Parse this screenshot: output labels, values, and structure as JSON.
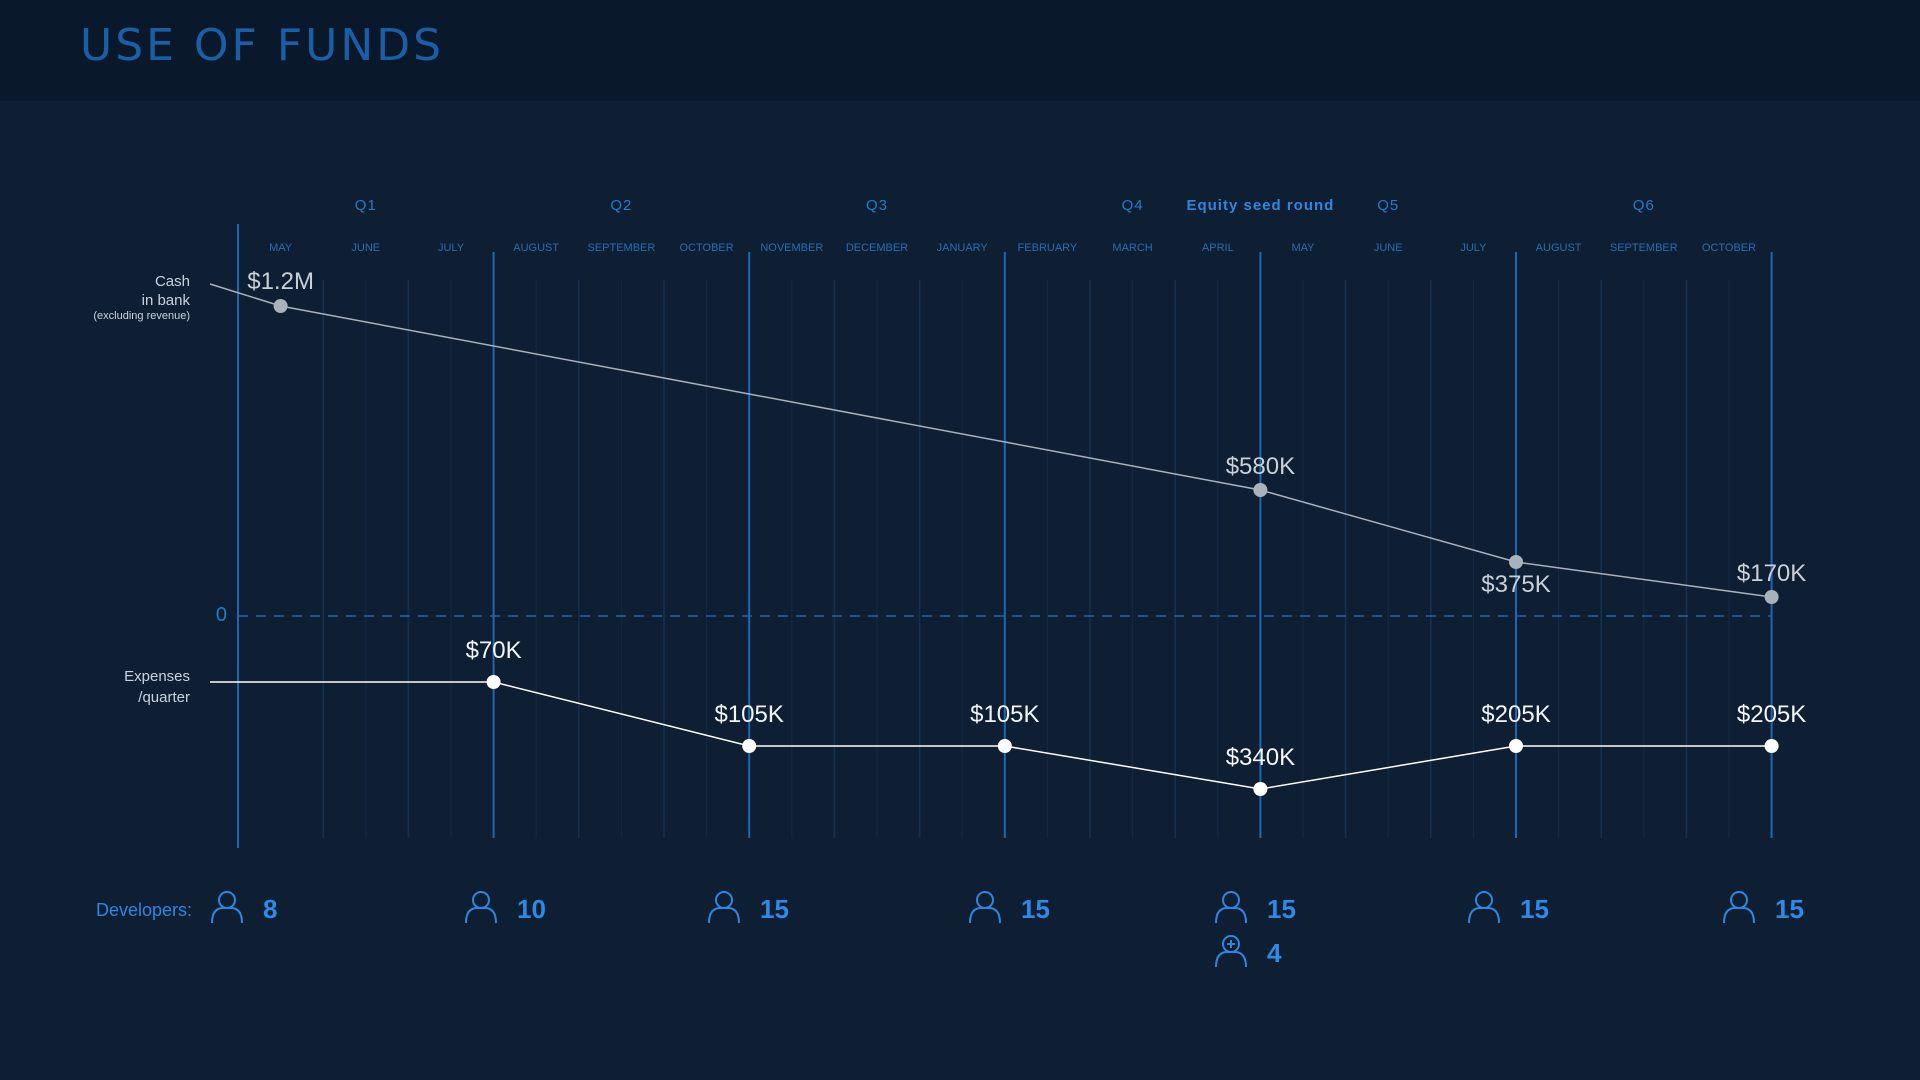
{
  "header": {
    "title": "USE OF FUNDS"
  },
  "colors": {
    "background": "#0f1f33",
    "header_bg": "#0a182b",
    "title": "#1a5fa6",
    "accent": "#2d86e0",
    "cash_line": "#a9b1bb",
    "expenses_line": "#ffffff"
  },
  "row_labels": {
    "cash_line1": "Cash",
    "cash_line2": "in bank",
    "cash_note": "(excluding revenue)",
    "zero": "0",
    "expenses_line1": "Expenses",
    "expenses_line2": "/quarter",
    "developers": "Developers:"
  },
  "chart_data": {
    "type": "line",
    "title": "USE OF FUNDS",
    "quarters": [
      "Q1",
      "Q2",
      "Q3",
      "Q4",
      "Q5",
      "Q6"
    ],
    "event_label": "Equity seed round",
    "months": [
      "MAY",
      "JUNE",
      "JULY",
      "AUGUST",
      "SEPTEMBER",
      "OCTOBER",
      "NOVEMBER",
      "DECEMBER",
      "JANUARY",
      "FEBRUARY",
      "MARCH",
      "APRIL",
      "MAY",
      "JUNE",
      "JULY",
      "AUGUST",
      "SEPTEMBER",
      "OCTOBER"
    ],
    "grid": true,
    "series": [
      {
        "key": "cash",
        "points": [
          {
            "month_index": 0.5,
            "value": 1200,
            "label": "$1.2M"
          },
          {
            "month_index": 12,
            "value": 580,
            "label": "$580K"
          },
          {
            "month_index": 15,
            "value": 375,
            "label": "$375K"
          },
          {
            "month_index": 18,
            "value": 170,
            "label": "$170K"
          }
        ]
      },
      {
        "key": "expenses",
        "points": [
          {
            "month_index": 3,
            "value": 70,
            "label": "$70K"
          },
          {
            "month_index": 6,
            "value": 105,
            "label": "$105K"
          },
          {
            "month_index": 9,
            "value": 105,
            "label": "$105K"
          },
          {
            "month_index": 12,
            "value": 340,
            "label": "$340K"
          },
          {
            "month_index": 15,
            "value": 205,
            "label": "$205K"
          },
          {
            "month_index": 18,
            "value": 205,
            "label": "$205K"
          }
        ]
      }
    ]
  },
  "developers": [
    {
      "count": "8"
    },
    {
      "count": "10"
    },
    {
      "count": "15"
    },
    {
      "count": "15"
    },
    {
      "count": "15",
      "added": "4"
    },
    {
      "count": "15"
    },
    {
      "count": "15"
    }
  ]
}
